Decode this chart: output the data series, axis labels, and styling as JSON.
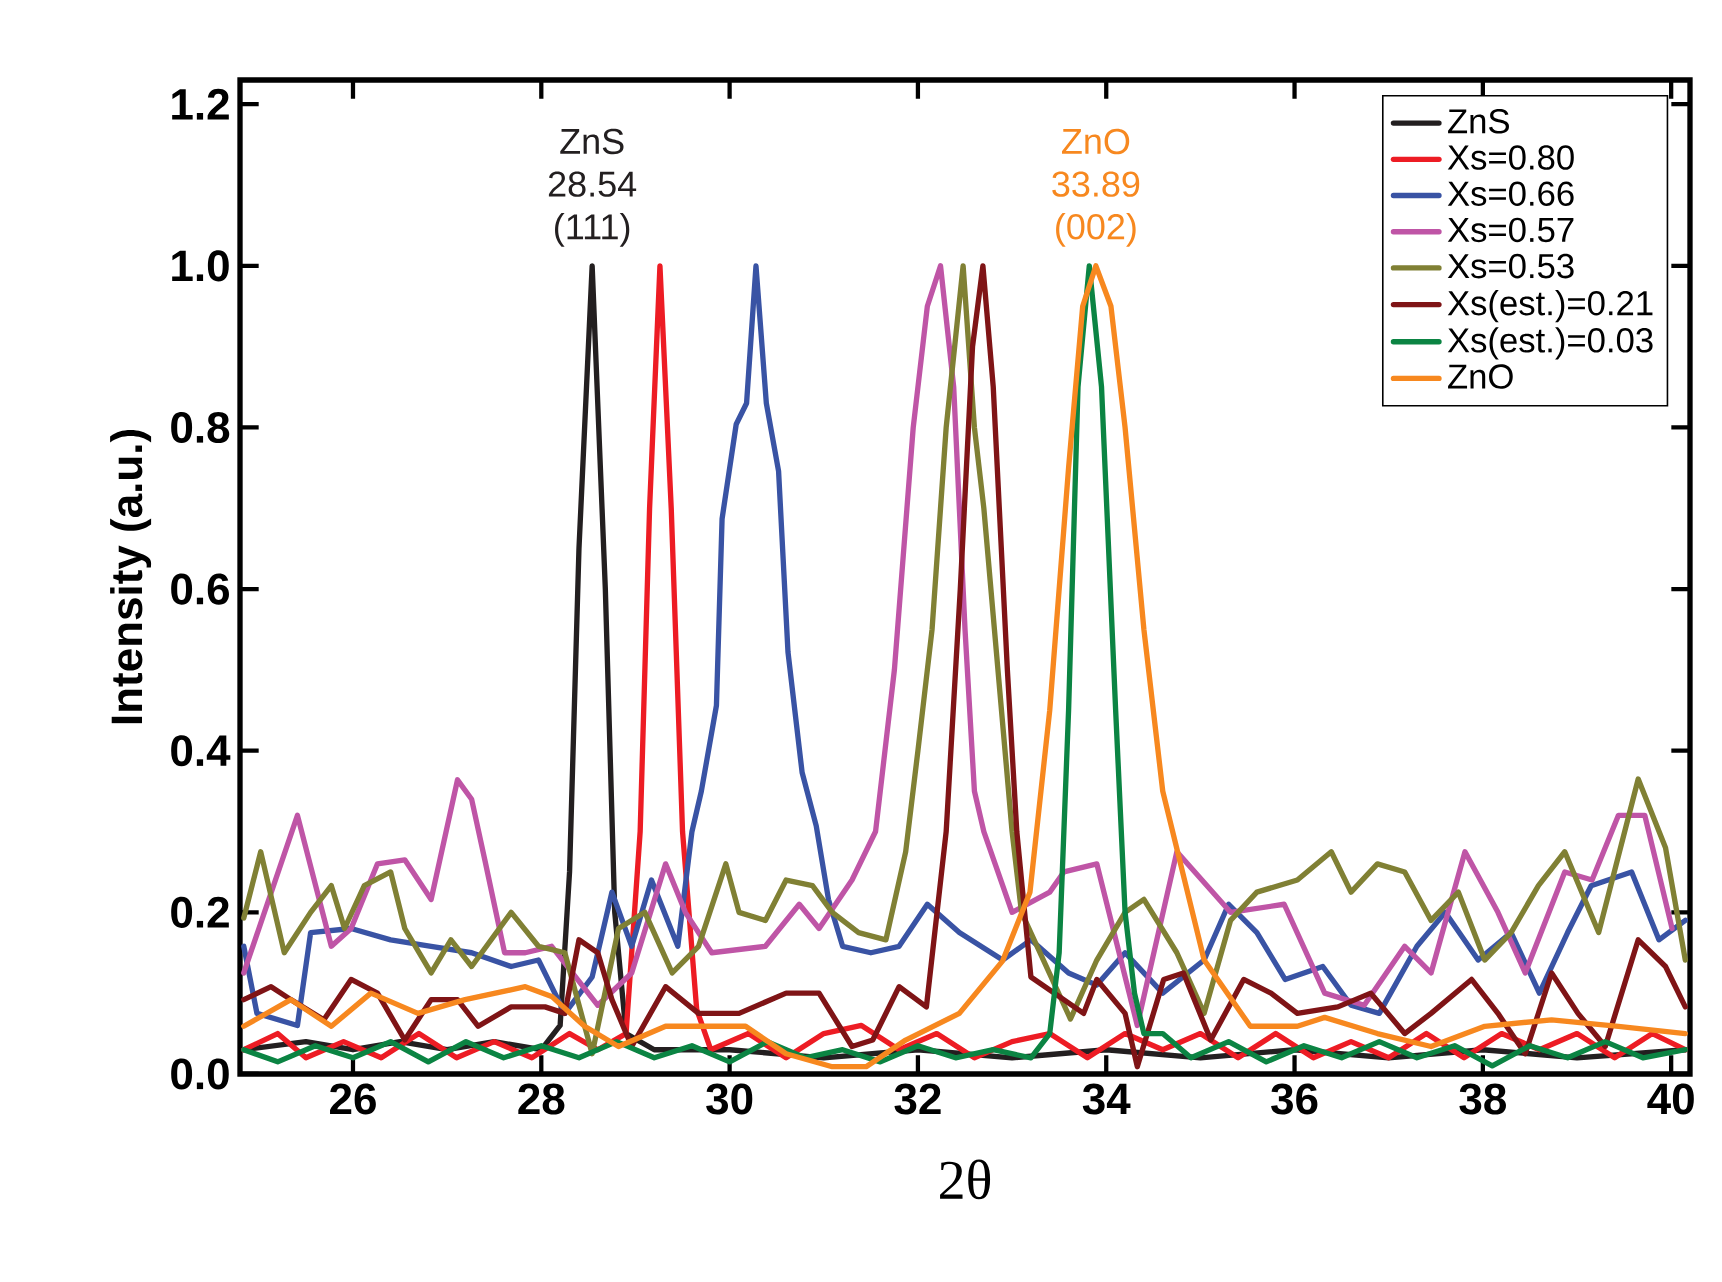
{
  "chart_data": {
    "type": "line",
    "xlabel": "2θ",
    "ylabel": "Intensity (a.u.)",
    "xlim": [
      24.8,
      40.2
    ],
    "ylim": [
      0,
      1.23
    ],
    "xticks": [
      26,
      28,
      30,
      32,
      34,
      36,
      38,
      40
    ],
    "yticks": [
      {
        "value": 0,
        "label": "0.0"
      },
      0.2,
      0.4,
      0.6,
      0.8,
      {
        "value": 1,
        "label": "1.0"
      },
      1.2
    ],
    "legend": "top right",
    "annotations": [
      {
        "text": "ZnS 28.54 (111)",
        "x": 28.54,
        "y": 1.0
      },
      {
        "text": "ZnO 33.89 (002)",
        "x": 33.89,
        "y": 1.0
      }
    ],
    "series": [
      {
        "name": "ZnS",
        "color": "#231f20",
        "x": [
          24.84,
          25.5,
          26,
          26.5,
          27,
          27.5,
          28,
          28.2,
          28.3,
          28.4,
          28.54,
          28.68,
          28.78,
          28.9,
          29.2,
          30,
          31,
          32,
          33,
          34,
          35,
          36,
          37,
          38,
          39,
          40.15
        ],
        "values": [
          0.03,
          0.04,
          0.03,
          0.04,
          0.03,
          0.04,
          0.03,
          0.06,
          0.25,
          0.65,
          1.0,
          0.6,
          0.2,
          0.05,
          0.03,
          0.03,
          0.02,
          0.03,
          0.02,
          0.03,
          0.02,
          0.03,
          0.02,
          0.03,
          0.02,
          0.03
        ]
      },
      {
        "name": "Xs=0.80",
        "color": "#ed1c24",
        "x": [
          24.84,
          25.2,
          25.5,
          25.9,
          26.3,
          26.7,
          27.1,
          27.5,
          27.9,
          28.3,
          28.6,
          28.9,
          29.05,
          29.15,
          29.26,
          29.38,
          29.5,
          29.65,
          29.8,
          30.2,
          30.6,
          31.0,
          31.4,
          31.8,
          32.2,
          32.6,
          33.0,
          33.4,
          33.8,
          34.2,
          34.6,
          35.0,
          35.4,
          35.8,
          36.2,
          36.6,
          37.0,
          37.4,
          37.8,
          38.2,
          38.6,
          39.0,
          39.4,
          39.8,
          40.15
        ],
        "values": [
          0.03,
          0.05,
          0.02,
          0.04,
          0.02,
          0.05,
          0.02,
          0.04,
          0.02,
          0.05,
          0.03,
          0.05,
          0.3,
          0.7,
          1.0,
          0.7,
          0.3,
          0.08,
          0.03,
          0.05,
          0.02,
          0.05,
          0.06,
          0.03,
          0.05,
          0.02,
          0.04,
          0.05,
          0.02,
          0.05,
          0.03,
          0.05,
          0.02,
          0.05,
          0.02,
          0.04,
          0.02,
          0.05,
          0.02,
          0.05,
          0.03,
          0.05,
          0.02,
          0.05,
          0.03
        ]
      },
      {
        "name": "Xs=0.66",
        "color": "#3953a4",
        "x": [
          24.84,
          24.98,
          25.41,
          25.55,
          25.98,
          26.4,
          26.83,
          27.26,
          27.68,
          27.97,
          28.25,
          28.54,
          28.75,
          28.96,
          29.17,
          29.45,
          29.6,
          29.7,
          29.86,
          29.92,
          30.07,
          30.18,
          30.28,
          30.39,
          30.52,
          30.62,
          30.77,
          30.92,
          31.05,
          31.2,
          31.5,
          31.8,
          32.1,
          32.44,
          32.9,
          33.2,
          33.6,
          33.9,
          34.2,
          34.6,
          35.04,
          35.3,
          35.6,
          35.9,
          36.3,
          36.6,
          36.9,
          37.3,
          37.6,
          37.95,
          38.3,
          38.6,
          38.9,
          39.15,
          39.58,
          39.87,
          40.15
        ],
        "values": [
          0.158,
          0.075,
          0.06,
          0.175,
          0.18,
          0.166,
          0.158,
          0.15,
          0.133,
          0.141,
          0.075,
          0.12,
          0.225,
          0.158,
          0.24,
          0.158,
          0.3,
          0.35,
          0.456,
          0.687,
          0.804,
          0.83,
          1.0,
          0.83,
          0.746,
          0.522,
          0.373,
          0.307,
          0.216,
          0.158,
          0.15,
          0.158,
          0.21,
          0.175,
          0.141,
          0.166,
          0.125,
          0.11,
          0.15,
          0.1,
          0.141,
          0.21,
          0.175,
          0.117,
          0.133,
          0.085,
          0.075,
          0.158,
          0.2,
          0.141,
          0.175,
          0.1,
          0.175,
          0.233,
          0.25,
          0.166,
          0.19
        ]
      },
      {
        "name": "Xs=0.57",
        "color": "#bf55a6",
        "x": [
          24.84,
          25.41,
          25.77,
          25.98,
          26.26,
          26.55,
          26.83,
          27.11,
          27.26,
          27.4,
          27.61,
          27.83,
          28.11,
          28.6,
          28.96,
          29.32,
          29.53,
          29.81,
          30.38,
          30.74,
          30.95,
          31.3,
          31.55,
          31.75,
          31.95,
          32.1,
          32.24,
          32.38,
          32.5,
          32.6,
          32.7,
          33.0,
          33.4,
          33.55,
          33.9,
          34.33,
          34.75,
          35.32,
          35.89,
          36.32,
          36.74,
          37.17,
          37.45,
          37.81,
          38.16,
          38.45,
          38.87,
          39.16,
          39.44,
          39.72,
          40.01
        ],
        "values": [
          0.125,
          0.32,
          0.158,
          0.18,
          0.26,
          0.265,
          0.216,
          0.364,
          0.34,
          0.265,
          0.15,
          0.15,
          0.158,
          0.085,
          0.125,
          0.26,
          0.2,
          0.15,
          0.158,
          0.21,
          0.18,
          0.24,
          0.3,
          0.5,
          0.8,
          0.95,
          1.0,
          0.85,
          0.55,
          0.35,
          0.3,
          0.2,
          0.225,
          0.25,
          0.26,
          0.06,
          0.275,
          0.2,
          0.21,
          0.1,
          0.085,
          0.158,
          0.125,
          0.275,
          0.2,
          0.125,
          0.25,
          0.24,
          0.32,
          0.32,
          0.18
        ]
      },
      {
        "name": "Xs=0.53",
        "color": "#808034",
        "x": [
          24.84,
          25.02,
          25.27,
          25.55,
          25.77,
          25.91,
          26.12,
          26.4,
          26.55,
          26.83,
          27.04,
          27.26,
          27.68,
          27.97,
          28.25,
          28.54,
          28.82,
          29.1,
          29.39,
          29.67,
          29.96,
          30.1,
          30.38,
          30.6,
          30.88,
          31.09,
          31.37,
          31.66,
          31.87,
          32.0,
          32.15,
          32.3,
          32.48,
          32.6,
          32.7,
          32.85,
          33.0,
          33.1,
          33.62,
          33.9,
          34.2,
          34.4,
          34.75,
          35.04,
          35.32,
          35.6,
          36.03,
          36.39,
          36.6,
          36.88,
          37.17,
          37.45,
          37.74,
          38.02,
          38.3,
          38.59,
          38.87,
          39.23,
          39.65,
          39.94,
          40.15
        ],
        "values": [
          0.193,
          0.275,
          0.15,
          0.2,
          0.233,
          0.18,
          0.233,
          0.25,
          0.18,
          0.125,
          0.166,
          0.133,
          0.2,
          0.158,
          0.15,
          0.025,
          0.18,
          0.2,
          0.125,
          0.158,
          0.26,
          0.2,
          0.19,
          0.24,
          0.233,
          0.2,
          0.175,
          0.166,
          0.275,
          0.4,
          0.55,
          0.8,
          1.0,
          0.8,
          0.7,
          0.5,
          0.3,
          0.2,
          0.068,
          0.141,
          0.2,
          0.216,
          0.15,
          0.075,
          0.19,
          0.225,
          0.24,
          0.275,
          0.225,
          0.26,
          0.25,
          0.19,
          0.225,
          0.141,
          0.175,
          0.233,
          0.275,
          0.175,
          0.365,
          0.28,
          0.141
        ]
      },
      {
        "name": "Xs(est.)=0.21",
        "color": "#7f1416",
        "x": [
          24.84,
          25.13,
          25.34,
          25.69,
          25.98,
          26.26,
          26.55,
          26.83,
          27.11,
          27.33,
          27.68,
          28.04,
          28.25,
          28.4,
          28.6,
          28.75,
          28.96,
          29.32,
          29.67,
          30.1,
          30.6,
          30.95,
          31.3,
          31.52,
          31.8,
          32.09,
          32.3,
          32.45,
          32.58,
          32.69,
          32.8,
          32.95,
          33.05,
          33.2,
          33.76,
          33.9,
          34.2,
          34.33,
          34.61,
          34.82,
          35.11,
          35.46,
          35.75,
          36.03,
          36.46,
          36.81,
          37.17,
          37.45,
          37.88,
          38.16,
          38.45,
          38.73,
          39.01,
          39.3,
          39.65,
          39.94,
          40.15
        ],
        "values": [
          0.092,
          0.108,
          0.092,
          0.067,
          0.117,
          0.1,
          0.042,
          0.092,
          0.092,
          0.059,
          0.083,
          0.083,
          0.075,
          0.166,
          0.15,
          0.092,
          0.034,
          0.108,
          0.075,
          0.075,
          0.1,
          0.1,
          0.034,
          0.042,
          0.108,
          0.083,
          0.3,
          0.6,
          0.9,
          1.0,
          0.85,
          0.5,
          0.3,
          0.12,
          0.075,
          0.117,
          0.075,
          0.009,
          0.117,
          0.125,
          0.042,
          0.117,
          0.1,
          0.075,
          0.083,
          0.1,
          0.05,
          0.075,
          0.117,
          0.075,
          0.025,
          0.125,
          0.075,
          0.034,
          0.166,
          0.133,
          0.083
        ]
      },
      {
        "name": "Xs(est.)=0.03",
        "color": "#0b8443",
        "x": [
          24.84,
          25.2,
          25.6,
          26.0,
          26.4,
          26.8,
          27.2,
          27.6,
          28.0,
          28.4,
          28.8,
          29.2,
          29.6,
          30.0,
          30.4,
          30.8,
          31.2,
          31.6,
          32.0,
          32.4,
          32.8,
          33.2,
          33.4,
          33.5,
          33.6,
          33.7,
          33.82,
          33.95,
          34.1,
          34.2,
          34.3,
          34.4,
          34.6,
          34.9,
          35.3,
          35.7,
          36.1,
          36.5,
          36.9,
          37.3,
          37.7,
          38.1,
          38.5,
          38.9,
          39.3,
          39.7,
          40.15
        ],
        "values": [
          0.03,
          0.015,
          0.035,
          0.02,
          0.04,
          0.015,
          0.04,
          0.02,
          0.035,
          0.02,
          0.04,
          0.02,
          0.035,
          0.015,
          0.04,
          0.02,
          0.03,
          0.015,
          0.035,
          0.02,
          0.03,
          0.02,
          0.05,
          0.15,
          0.45,
          0.85,
          1.0,
          0.85,
          0.45,
          0.2,
          0.1,
          0.05,
          0.05,
          0.02,
          0.04,
          0.015,
          0.035,
          0.02,
          0.04,
          0.02,
          0.035,
          0.01,
          0.035,
          0.02,
          0.04,
          0.02,
          0.03
        ]
      },
      {
        "name": "ZnO",
        "color": "#f7881f",
        "x": [
          24.84,
          25.34,
          25.77,
          26.19,
          26.69,
          27.19,
          27.83,
          28.11,
          28.46,
          28.82,
          29.32,
          29.74,
          30.17,
          30.6,
          31.09,
          31.45,
          31.87,
          32.44,
          32.9,
          33.19,
          33.4,
          33.6,
          33.75,
          33.89,
          34.05,
          34.2,
          34.4,
          34.6,
          35.04,
          35.53,
          36.03,
          36.32,
          36.88,
          37.45,
          38.02,
          38.73,
          39.44,
          40.15
        ],
        "values": [
          0.059,
          0.092,
          0.059,
          0.1,
          0.075,
          0.092,
          0.108,
          0.096,
          0.059,
          0.034,
          0.059,
          0.059,
          0.059,
          0.025,
          0.009,
          0.009,
          0.042,
          0.075,
          0.14,
          0.225,
          0.45,
          0.75,
          0.95,
          1.0,
          0.95,
          0.8,
          0.55,
          0.35,
          0.141,
          0.059,
          0.059,
          0.07,
          0.05,
          0.034,
          0.059,
          0.067,
          0.059,
          0.05
        ]
      }
    ]
  }
}
